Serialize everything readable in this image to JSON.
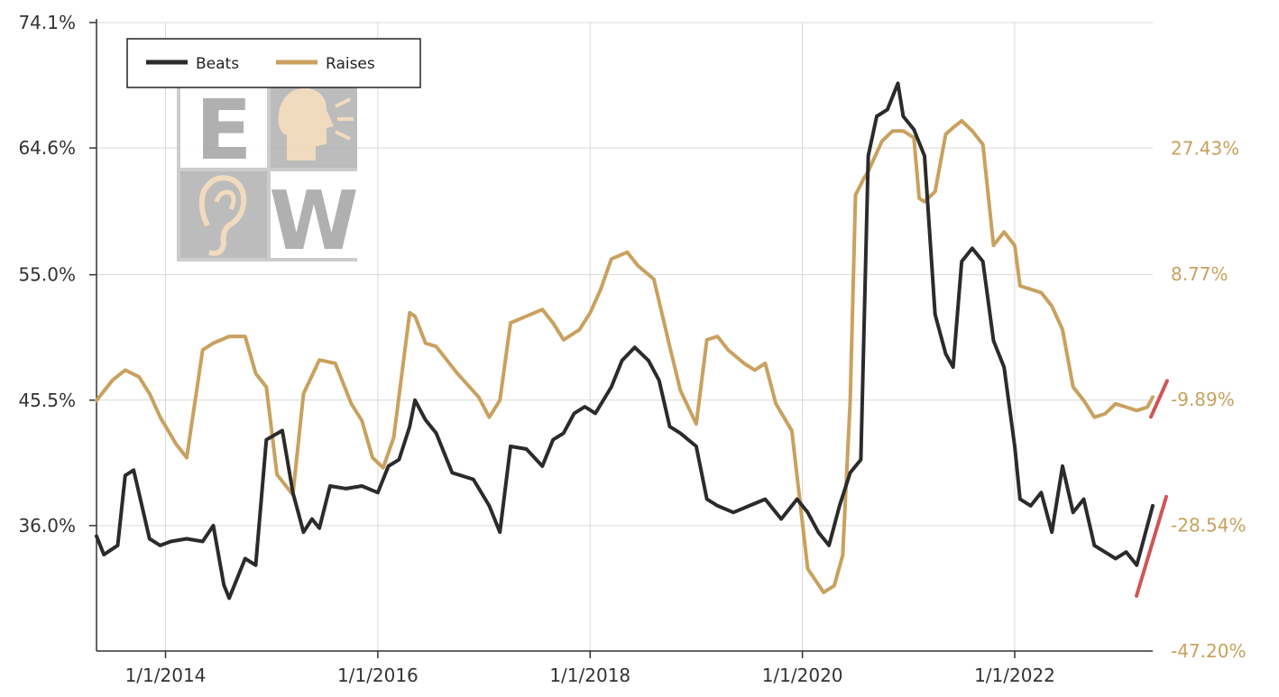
{
  "chart_data": {
    "type": "line",
    "title": "",
    "xlabel": "",
    "ylabel": "",
    "x_ticks": [
      "1/1/2014",
      "1/1/2016",
      "1/1/2018",
      "1/1/2020",
      "1/1/2022"
    ],
    "x_range": [
      2013.35,
      2023.3
    ],
    "y_left_ticks": [
      "74.1%",
      "64.6%",
      "55.0%",
      "45.5%",
      "36.0%"
    ],
    "y_left_range": [
      26.5,
      74.1
    ],
    "y_right_ticks": [
      "27.43%",
      "8.77%",
      "-9.89%",
      "-28.54%",
      "-47.20%"
    ],
    "y_right_range": [
      -47.2,
      46.09
    ],
    "grid": true,
    "legend_position": "top-left",
    "series": [
      {
        "name": "Beats",
        "color": "#2b2b2b",
        "axis": "left",
        "x": [
          2013.35,
          2013.42,
          2013.55,
          2013.62,
          2013.7,
          2013.85,
          2013.95,
          2014.05,
          2014.2,
          2014.35,
          2014.45,
          2014.55,
          2014.6,
          2014.75,
          2014.85,
          2014.95,
          2015.1,
          2015.2,
          2015.3,
          2015.38,
          2015.45,
          2015.55,
          2015.7,
          2015.85,
          2016.0,
          2016.1,
          2016.2,
          2016.3,
          2016.35,
          2016.45,
          2016.55,
          2016.7,
          2016.9,
          2017.05,
          2017.15,
          2017.25,
          2017.4,
          2017.55,
          2017.65,
          2017.75,
          2017.85,
          2017.95,
          2018.05,
          2018.2,
          2018.3,
          2018.42,
          2018.55,
          2018.65,
          2018.75,
          2018.85,
          2019.0,
          2019.1,
          2019.2,
          2019.35,
          2019.5,
          2019.65,
          2019.8,
          2019.95,
          2020.05,
          2020.15,
          2020.25,
          2020.35,
          2020.45,
          2020.55,
          2020.62,
          2020.7,
          2020.8,
          2020.9,
          2020.95,
          2021.05,
          2021.15,
          2021.25,
          2021.35,
          2021.42,
          2021.5,
          2021.6,
          2021.7,
          2021.8,
          2021.9,
          2022.0,
          2022.05,
          2022.15,
          2022.25,
          2022.35,
          2022.45,
          2022.55,
          2022.65,
          2022.75,
          2022.85,
          2022.95,
          2023.05,
          2023.15,
          2023.25,
          2023.3
        ],
        "values": [
          35.2,
          33.8,
          34.5,
          39.8,
          40.2,
          35.0,
          34.5,
          34.8,
          35.0,
          34.8,
          36.0,
          31.5,
          30.5,
          33.5,
          33.0,
          42.5,
          43.2,
          38.5,
          35.5,
          36.5,
          35.8,
          39.0,
          38.8,
          39.0,
          38.5,
          40.5,
          41.0,
          43.5,
          45.5,
          44.0,
          43.0,
          40.0,
          39.5,
          37.5,
          35.5,
          42.0,
          41.8,
          40.5,
          42.5,
          43.0,
          44.5,
          45.0,
          44.5,
          46.5,
          48.5,
          49.5,
          48.5,
          47.0,
          43.5,
          43.0,
          42.0,
          38.0,
          37.5,
          37.0,
          37.5,
          38.0,
          36.5,
          38.0,
          37.0,
          35.5,
          34.5,
          37.5,
          40.0,
          41.0,
          64.0,
          67.0,
          67.5,
          69.5,
          67.0,
          66.0,
          64.0,
          52.0,
          49.0,
          48.0,
          56.0,
          57.0,
          56.0,
          50.0,
          48.0,
          42.0,
          38.0,
          37.5,
          38.5,
          35.5,
          40.5,
          37.0,
          38.0,
          34.5,
          34.0,
          33.5,
          34.0,
          33.0,
          36.0,
          37.5
        ]
      },
      {
        "name": "Raises",
        "color": "#c9a15f",
        "axis": "right",
        "x": [
          2013.35,
          2013.5,
          2013.62,
          2013.75,
          2013.85,
          2013.95,
          2014.1,
          2014.2,
          2014.35,
          2014.45,
          2014.6,
          2014.75,
          2014.85,
          2014.95,
          2015.05,
          2015.2,
          2015.3,
          2015.45,
          2015.6,
          2015.75,
          2015.85,
          2015.95,
          2016.05,
          2016.15,
          2016.3,
          2016.35,
          2016.45,
          2016.55,
          2016.75,
          2016.95,
          2017.05,
          2017.15,
          2017.25,
          2017.4,
          2017.55,
          2017.65,
          2017.75,
          2017.9,
          2018.0,
          2018.1,
          2018.2,
          2018.35,
          2018.45,
          2018.6,
          2018.75,
          2018.85,
          2019.0,
          2019.1,
          2019.2,
          2019.3,
          2019.45,
          2019.55,
          2019.65,
          2019.75,
          2019.9,
          2020.05,
          2020.2,
          2020.3,
          2020.38,
          2020.45,
          2020.5,
          2020.58,
          2020.62,
          2020.75,
          2020.85,
          2020.95,
          2021.05,
          2021.1,
          2021.15,
          2021.25,
          2021.35,
          2021.42,
          2021.5,
          2021.6,
          2021.7,
          2021.8,
          2021.9,
          2022.0,
          2022.05,
          2022.15,
          2022.25,
          2022.35,
          2022.45,
          2022.55,
          2022.65,
          2022.75,
          2022.85,
          2022.95,
          2023.05,
          2023.15,
          2023.25,
          2023.3
        ],
        "values": [
          -10.0,
          -7.0,
          -5.5,
          -6.5,
          -9.0,
          -12.5,
          -16.5,
          -18.5,
          -2.5,
          -1.5,
          -0.5,
          -0.5,
          -6.0,
          -8.0,
          -21.0,
          -24.0,
          -9.0,
          -4.0,
          -4.5,
          -10.5,
          -13.0,
          -18.5,
          -20.0,
          -15.5,
          3.0,
          2.5,
          -1.5,
          -2.0,
          -6.0,
          -9.5,
          -12.5,
          -10.0,
          1.5,
          2.5,
          3.5,
          1.5,
          -1.0,
          0.5,
          3.0,
          6.5,
          11.0,
          12.0,
          10.0,
          8.0,
          -2.0,
          -8.5,
          -13.5,
          -1.0,
          -0.5,
          -2.5,
          -4.5,
          -5.5,
          -4.5,
          -10.5,
          -14.5,
          -35.0,
          -38.5,
          -37.5,
          -33.0,
          -10.0,
          20.5,
          23.0,
          24.0,
          28.5,
          30.0,
          30.0,
          29.0,
          20.0,
          19.5,
          21.0,
          29.5,
          30.5,
          31.5,
          30.0,
          28.0,
          13.0,
          15.0,
          13.0,
          7.0,
          6.5,
          6.0,
          4.0,
          0.5,
          -8.0,
          -10.0,
          -12.5,
          -12.0,
          -10.5,
          -11.0,
          -11.5,
          -11.0,
          -9.5
        ]
      }
    ],
    "trend_markers": {
      "color": "#d05555",
      "raises_end_arrow": true,
      "beats_end_arrow": true
    }
  },
  "legend": {
    "items": [
      {
        "label": "Beats",
        "color": "#2b2b2b"
      },
      {
        "label": "Raises",
        "color": "#c9a15f"
      }
    ]
  },
  "logo": {
    "letters": [
      "E",
      "W"
    ]
  }
}
